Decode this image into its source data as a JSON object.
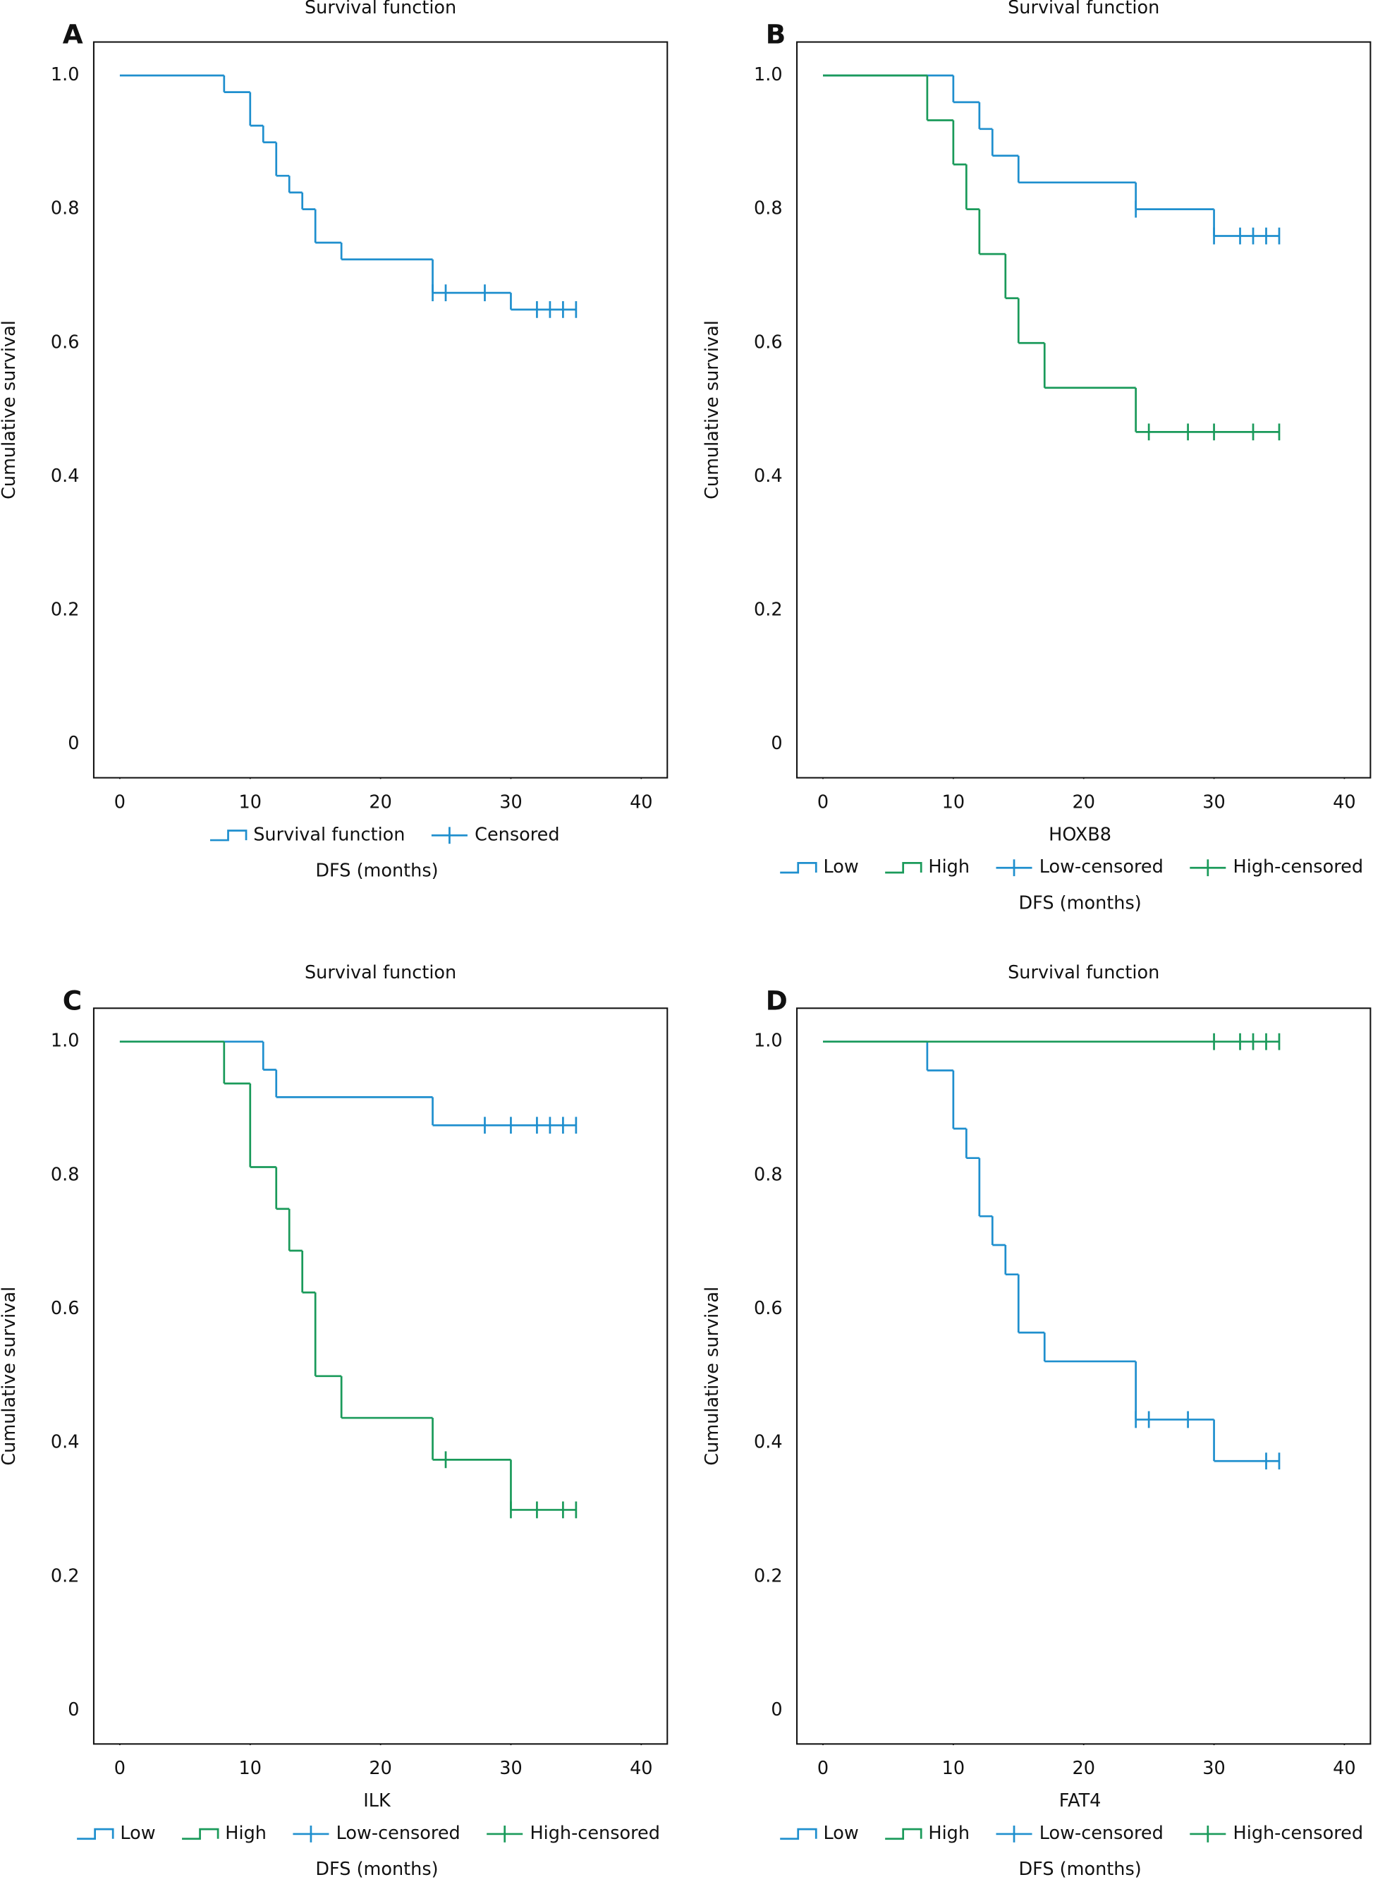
{
  "chart_data": [
    {
      "type": "step",
      "panel": "A",
      "title": "Survival function",
      "xlabel": "DFS (months)",
      "ylabel": "Cumulative survival",
      "xlim": [
        -2,
        42
      ],
      "ylim": [
        -0.05,
        1.05
      ],
      "xticks": [
        0,
        10,
        20,
        30,
        40
      ],
      "yticks": [
        0,
        0.2,
        0.4,
        0.6,
        0.8,
        {
          "value": 1,
          "label": "1.0"
        }
      ],
      "series": [
        {
          "name": "Survival function",
          "color": "#1f8fce",
          "style": "step",
          "x": [
            0,
            8,
            10,
            11,
            12,
            13,
            14,
            15,
            17,
            24,
            30,
            35
          ],
          "values": [
            1,
            0.975,
            0.925,
            0.9,
            0.85,
            0.825,
            0.8,
            0.75,
            0.725,
            0.675,
            0.65,
            0.65
          ]
        },
        {
          "name": "Censored",
          "color": "#1f8fce",
          "style": "censor",
          "x": [
            24,
            25,
            28,
            32,
            33,
            34,
            35
          ],
          "values": [
            0.675,
            0.675,
            0.675,
            0.65,
            0.65,
            0.65,
            0.65
          ]
        }
      ]
    },
    {
      "type": "step",
      "panel": "B",
      "title": "Survival function",
      "legend_title": "HOXB8",
      "xlabel": "DFS (months)",
      "ylabel": "Cumulative survival",
      "xlim": [
        -2,
        42
      ],
      "ylim": [
        -0.05,
        1.05
      ],
      "xticks": [
        0,
        10,
        20,
        30,
        40
      ],
      "yticks": [
        0,
        0.2,
        0.4,
        0.6,
        0.8,
        {
          "value": 1,
          "label": "1.0"
        }
      ],
      "series": [
        {
          "name": "Low",
          "color": "#1f8fce",
          "style": "step",
          "x": [
            0,
            10,
            12,
            13,
            15,
            24,
            30,
            35
          ],
          "values": [
            1,
            0.96,
            0.92,
            0.88,
            0.84,
            0.8,
            0.76,
            0.76
          ]
        },
        {
          "name": "High",
          "color": "#1a9a5a",
          "style": "step",
          "x": [
            0,
            8,
            10,
            11,
            12,
            14,
            15,
            17,
            24,
            35
          ],
          "values": [
            1,
            0.933,
            0.867,
            0.8,
            0.733,
            0.667,
            0.6,
            0.533,
            0.467,
            0.467
          ]
        },
        {
          "name": "Low-censored",
          "color": "#1f8fce",
          "style": "censor",
          "x": [
            24,
            30,
            32,
            33,
            34,
            35
          ],
          "values": [
            0.8,
            0.76,
            0.76,
            0.76,
            0.76,
            0.76
          ]
        },
        {
          "name": "High-censored",
          "color": "#1a9a5a",
          "style": "censor",
          "x": [
            25,
            28,
            30,
            33,
            35
          ],
          "values": [
            0.467,
            0.467,
            0.467,
            0.467,
            0.467
          ]
        }
      ]
    },
    {
      "type": "step",
      "panel": "C",
      "title": "Survival function",
      "legend_title": "ILK",
      "xlabel": "DFS (months)",
      "ylabel": "Cumulative survival",
      "xlim": [
        -2,
        42
      ],
      "ylim": [
        -0.05,
        1.05
      ],
      "xticks": [
        0,
        10,
        20,
        30,
        40
      ],
      "yticks": [
        0,
        0.2,
        0.4,
        0.6,
        0.8,
        {
          "value": 1,
          "label": "1.0"
        }
      ],
      "series": [
        {
          "name": "Low",
          "color": "#1f8fce",
          "style": "step",
          "x": [
            0,
            11,
            12,
            24,
            35
          ],
          "values": [
            1,
            0.958,
            0.917,
            0.875,
            0.875
          ]
        },
        {
          "name": "High",
          "color": "#1a9a5a",
          "style": "step",
          "x": [
            0,
            8,
            10,
            12,
            13,
            14,
            15,
            17,
            24,
            30,
            35
          ],
          "values": [
            1,
            0.9375,
            0.8125,
            0.75,
            0.6875,
            0.625,
            0.5,
            0.4375,
            0.375,
            0.3,
            0.3
          ]
        },
        {
          "name": "Low-censored",
          "color": "#1f8fce",
          "style": "censor",
          "x": [
            28,
            30,
            32,
            33,
            34,
            35
          ],
          "values": [
            0.875,
            0.875,
            0.875,
            0.875,
            0.875,
            0.875
          ]
        },
        {
          "name": "High-censored",
          "color": "#1a9a5a",
          "style": "censor",
          "x": [
            25,
            30,
            32,
            34,
            35
          ],
          "values": [
            0.375,
            0.3,
            0.3,
            0.3,
            0.3
          ]
        }
      ]
    },
    {
      "type": "step",
      "panel": "D",
      "title": "Survival function",
      "legend_title": "FAT4",
      "xlabel": "DFS (months)",
      "ylabel": "Cumulative survival",
      "xlim": [
        -2,
        42
      ],
      "ylim": [
        -0.05,
        1.05
      ],
      "xticks": [
        0,
        10,
        20,
        30,
        40
      ],
      "yticks": [
        0,
        0.2,
        0.4,
        0.6,
        0.8,
        {
          "value": 1,
          "label": "1.0"
        }
      ],
      "series": [
        {
          "name": "Low",
          "color": "#1f8fce",
          "style": "step",
          "x": [
            0,
            8,
            10,
            11,
            12,
            13,
            14,
            15,
            17,
            24,
            30,
            35
          ],
          "values": [
            1,
            0.957,
            0.87,
            0.826,
            0.739,
            0.696,
            0.652,
            0.565,
            0.522,
            0.435,
            0.373,
            0.373
          ]
        },
        {
          "name": "High",
          "color": "#1a9a5a",
          "style": "step",
          "x": [
            0,
            35
          ],
          "values": [
            1,
            1
          ]
        },
        {
          "name": "Low-censored",
          "color": "#1f8fce",
          "style": "censor",
          "x": [
            24,
            25,
            28,
            34,
            35
          ],
          "values": [
            0.435,
            0.435,
            0.435,
            0.373,
            0.373
          ]
        },
        {
          "name": "High-censored",
          "color": "#1a9a5a",
          "style": "censor",
          "x": [
            30,
            32,
            33,
            34,
            35
          ],
          "values": [
            1,
            1,
            1,
            1,
            1
          ]
        }
      ]
    }
  ]
}
